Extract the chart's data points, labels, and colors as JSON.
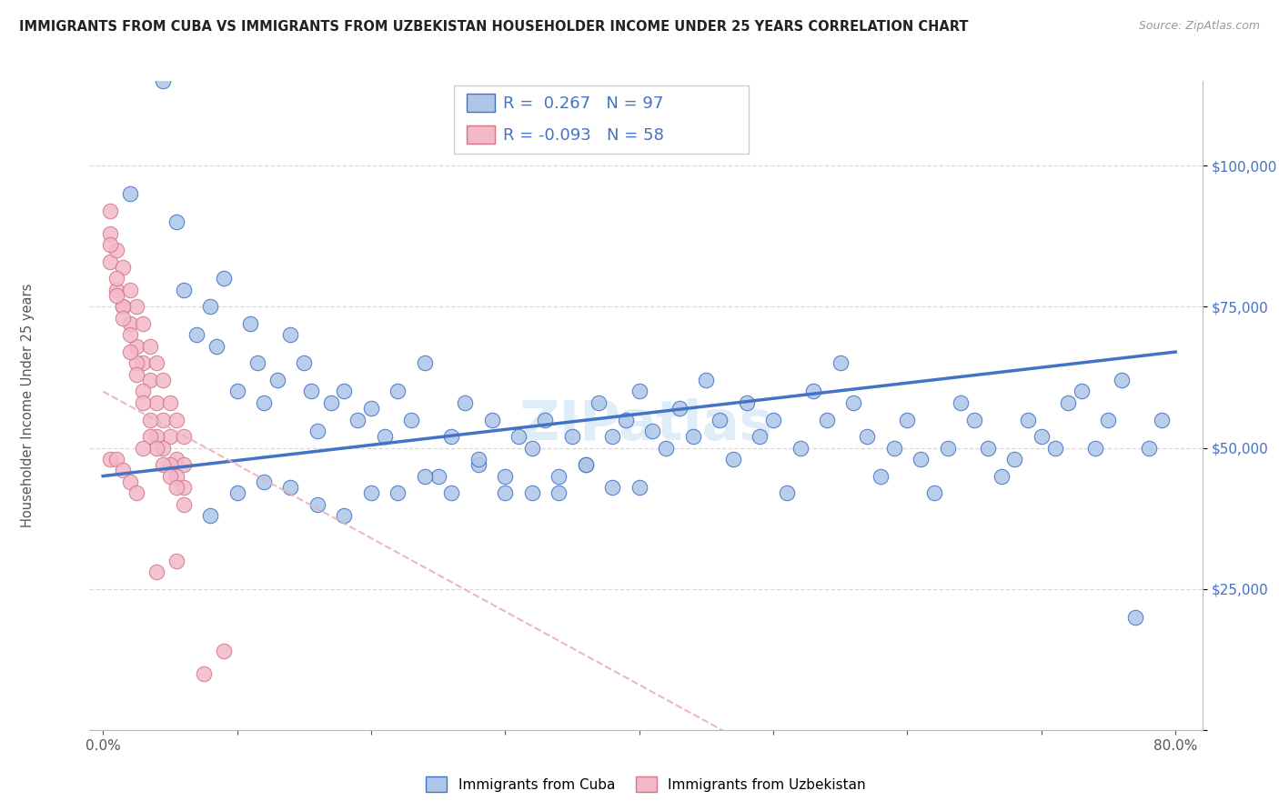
{
  "title": "IMMIGRANTS FROM CUBA VS IMMIGRANTS FROM UZBEKISTAN HOUSEHOLDER INCOME UNDER 25 YEARS CORRELATION CHART",
  "source": "Source: ZipAtlas.com",
  "ylabel": "Householder Income Under 25 years",
  "cuba_R": 0.267,
  "cuba_N": 97,
  "uzbek_R": -0.093,
  "uzbek_N": 58,
  "cuba_fill_color": "#adc6e8",
  "cuba_edge_color": "#4472c4",
  "uzbek_fill_color": "#f4b8c8",
  "uzbek_edge_color": "#d07888",
  "cuba_line_color": "#4472c4",
  "uzbek_line_color": "#e8b0bc",
  "legend_label_cuba": "Immigrants from Cuba",
  "legend_label_uzbek": "Immigrants from Uzbekistan",
  "cuba_points_x": [
    2.0,
    4.5,
    5.5,
    6.0,
    7.0,
    8.0,
    8.5,
    9.0,
    10.0,
    11.0,
    11.5,
    12.0,
    13.0,
    14.0,
    15.0,
    15.5,
    16.0,
    17.0,
    18.0,
    19.0,
    20.0,
    21.0,
    22.0,
    23.0,
    24.0,
    25.0,
    26.0,
    27.0,
    28.0,
    29.0,
    30.0,
    31.0,
    32.0,
    33.0,
    34.0,
    35.0,
    36.0,
    37.0,
    38.0,
    39.0,
    40.0,
    41.0,
    42.0,
    43.0,
    44.0,
    45.0,
    46.0,
    47.0,
    48.0,
    49.0,
    50.0,
    51.0,
    52.0,
    53.0,
    54.0,
    55.0,
    56.0,
    57.0,
    58.0,
    59.0,
    60.0,
    61.0,
    62.0,
    63.0,
    64.0,
    65.0,
    66.0,
    67.0,
    68.0,
    69.0,
    70.0,
    71.0,
    72.0,
    73.0,
    74.0,
    75.0,
    76.0,
    77.0,
    78.0,
    79.0,
    8.0,
    10.0,
    12.0,
    14.0,
    16.0,
    18.0,
    20.0,
    22.0,
    24.0,
    26.0,
    28.0,
    30.0,
    32.0,
    34.0,
    36.0,
    38.0,
    40.0
  ],
  "cuba_points_y": [
    95000,
    115000,
    90000,
    78000,
    70000,
    75000,
    68000,
    80000,
    60000,
    72000,
    65000,
    58000,
    62000,
    70000,
    65000,
    60000,
    53000,
    58000,
    60000,
    55000,
    57000,
    52000,
    60000,
    55000,
    65000,
    45000,
    52000,
    58000,
    47000,
    55000,
    45000,
    52000,
    50000,
    55000,
    42000,
    52000,
    47000,
    58000,
    52000,
    55000,
    60000,
    53000,
    50000,
    57000,
    52000,
    62000,
    55000,
    48000,
    58000,
    52000,
    55000,
    42000,
    50000,
    60000,
    55000,
    65000,
    58000,
    52000,
    45000,
    50000,
    55000,
    48000,
    42000,
    50000,
    58000,
    55000,
    50000,
    45000,
    48000,
    55000,
    52000,
    50000,
    58000,
    60000,
    50000,
    55000,
    62000,
    20000,
    50000,
    55000,
    38000,
    42000,
    44000,
    43000,
    40000,
    38000,
    42000,
    42000,
    45000,
    42000,
    48000,
    42000,
    42000,
    45000,
    47000,
    43000,
    43000
  ],
  "uzbek_points_x": [
    0.5,
    0.5,
    1.0,
    1.0,
    1.5,
    1.5,
    2.0,
    2.0,
    2.5,
    2.5,
    3.0,
    3.0,
    3.5,
    3.5,
    4.0,
    4.0,
    4.5,
    4.5,
    5.0,
    5.0,
    5.5,
    5.5,
    6.0,
    6.0,
    0.5,
    1.0,
    1.5,
    2.0,
    2.5,
    3.0,
    3.5,
    4.0,
    4.5,
    5.0,
    5.5,
    6.0,
    0.5,
    1.0,
    1.5,
    2.0,
    2.5,
    3.0,
    3.5,
    4.0,
    4.5,
    5.0,
    5.5,
    6.0,
    0.5,
    1.0,
    1.5,
    2.0,
    3.0,
    4.0,
    5.5,
    7.5,
    9.0,
    2.5
  ],
  "uzbek_points_y": [
    88000,
    83000,
    85000,
    78000,
    82000,
    75000,
    78000,
    72000,
    75000,
    68000,
    72000,
    65000,
    68000,
    62000,
    65000,
    58000,
    62000,
    55000,
    58000,
    52000,
    55000,
    48000,
    52000,
    47000,
    92000,
    80000,
    75000,
    70000,
    65000,
    60000,
    55000,
    52000,
    50000,
    47000,
    45000,
    43000,
    86000,
    77000,
    73000,
    67000,
    63000,
    58000,
    52000,
    50000,
    47000,
    45000,
    43000,
    40000,
    48000,
    48000,
    46000,
    44000,
    50000,
    28000,
    30000,
    10000,
    14000,
    42000
  ]
}
